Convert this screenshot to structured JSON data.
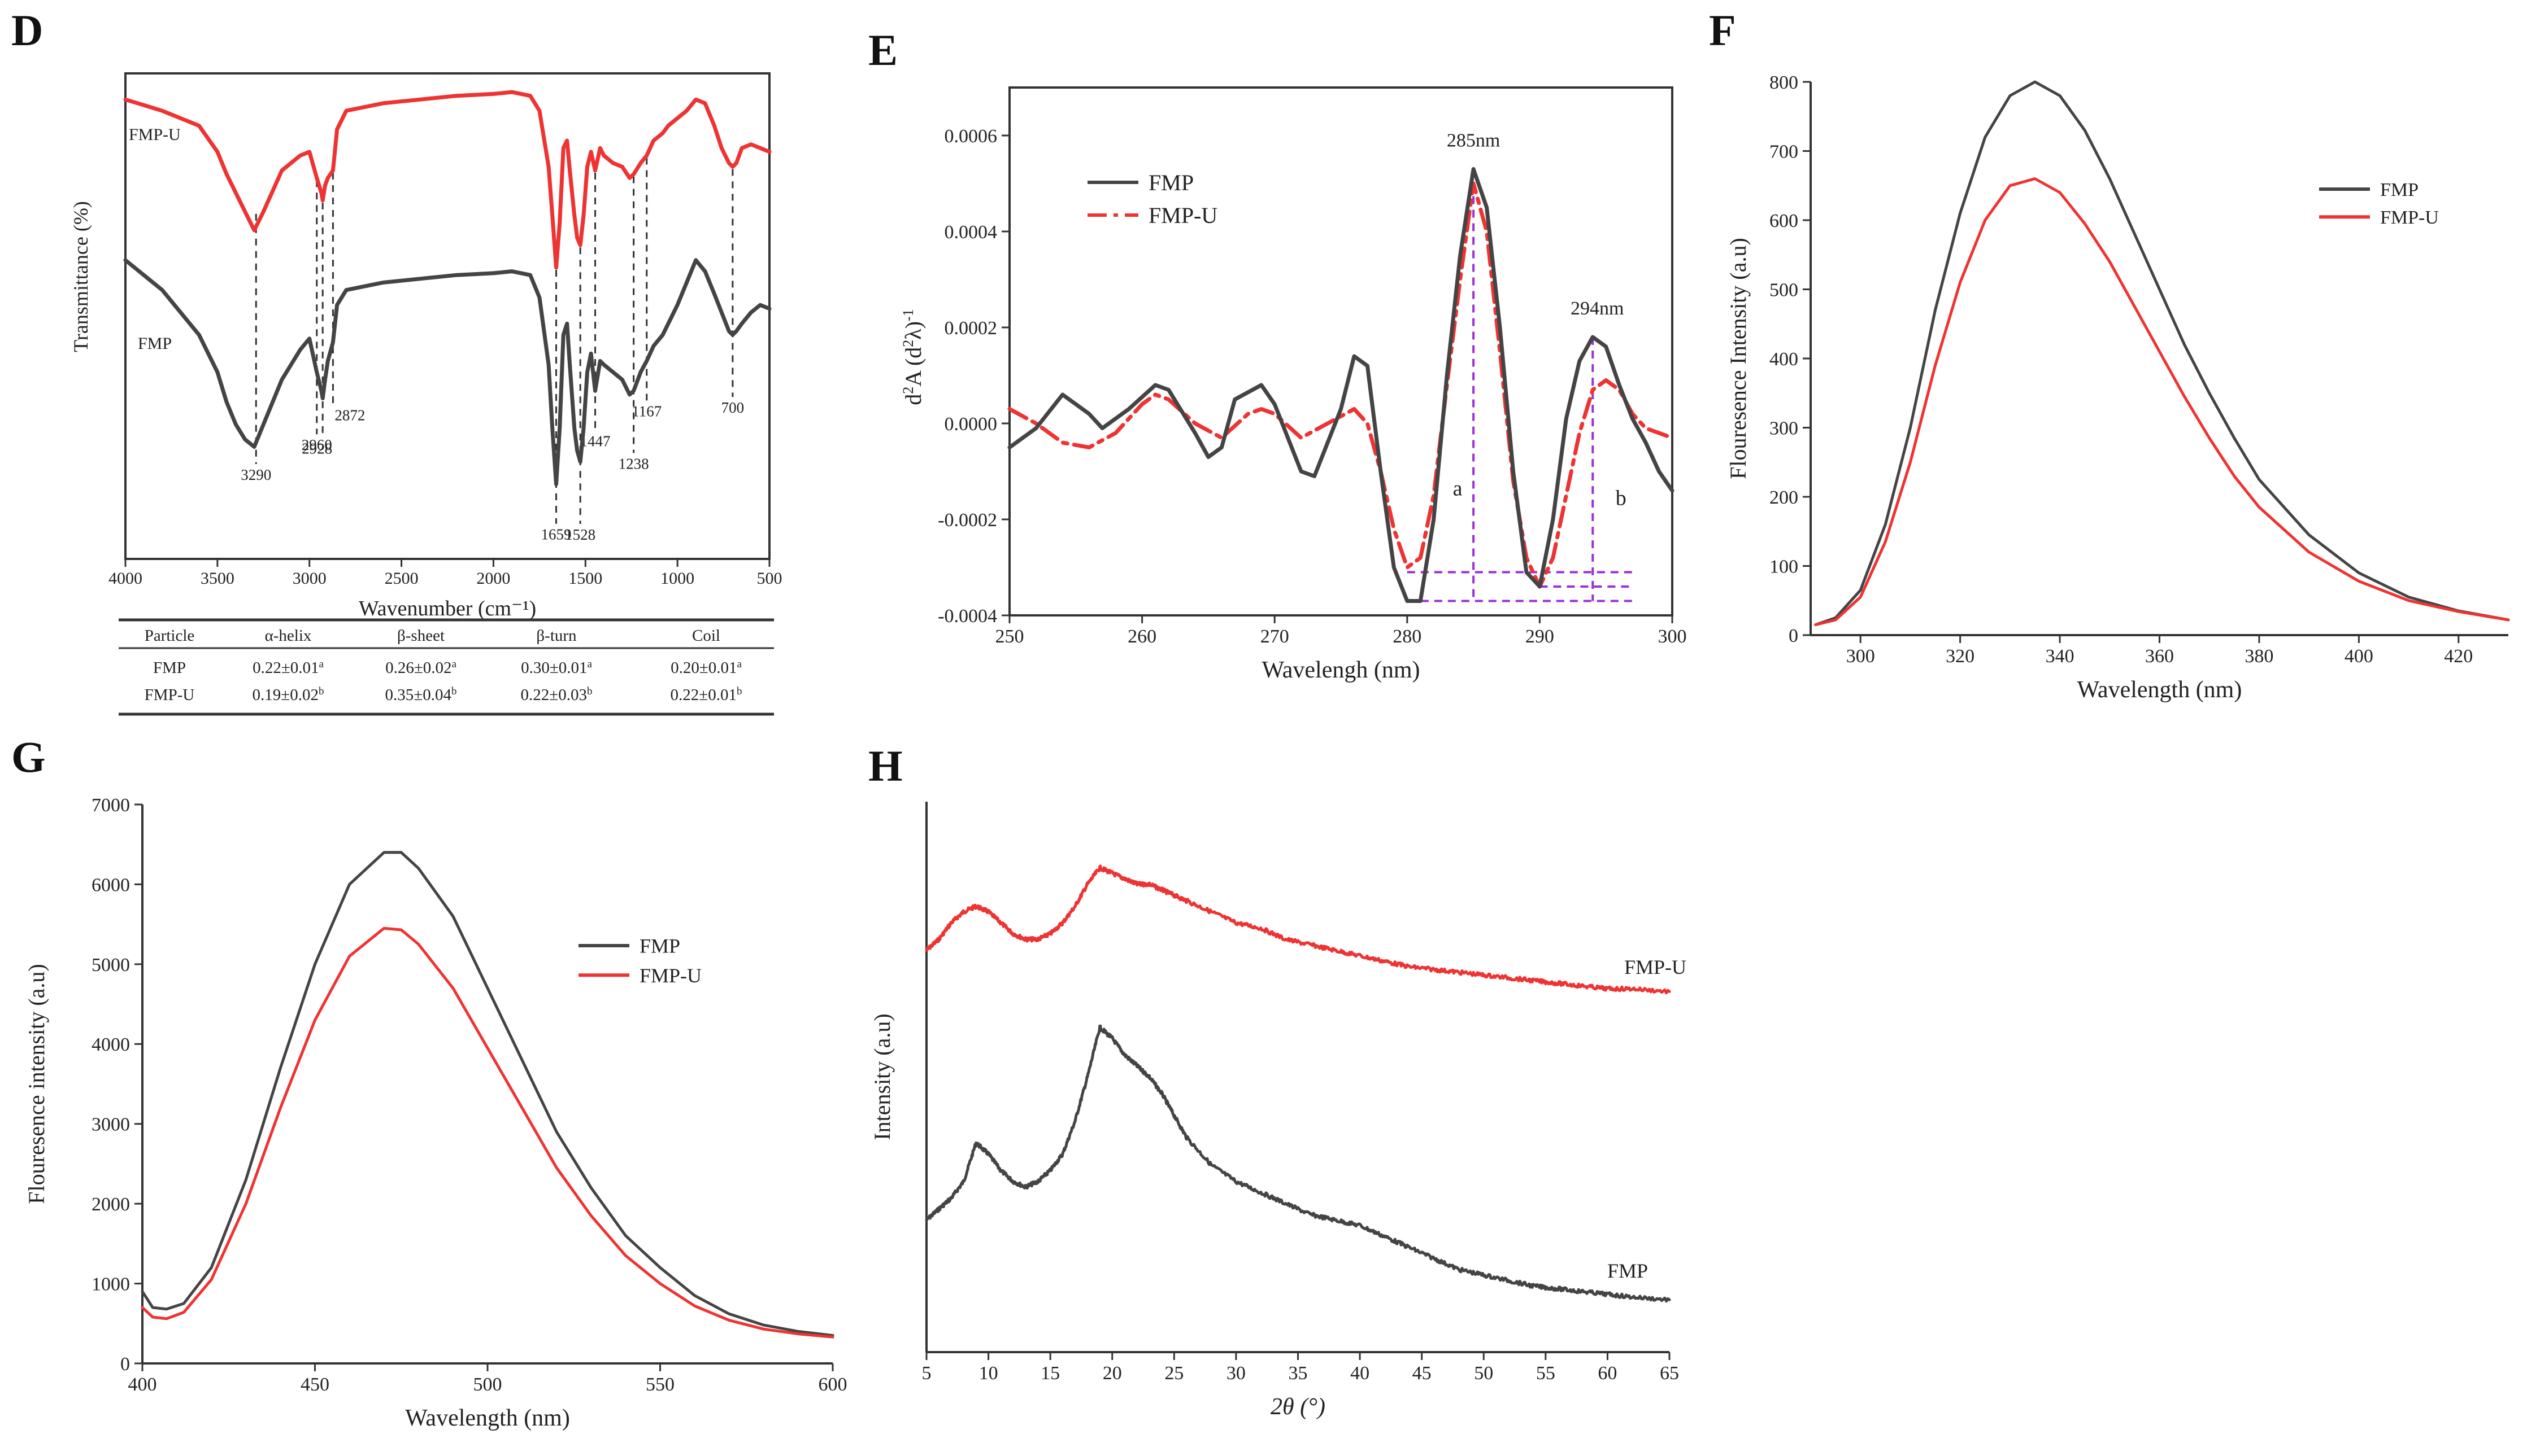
{
  "chart_data": [
    {
      "panel": "D",
      "type": "line",
      "xlabel": "Wavenumber (cm⁻¹)",
      "ylabel": "Transmittance (%)",
      "xlim": [
        4000,
        500
      ],
      "xticks": [
        4000,
        3500,
        3000,
        2500,
        2000,
        1500,
        1000,
        500
      ],
      "series": [
        {
          "name": "FMP-U",
          "color": "#ee3333",
          "x": [
            4000,
            3800,
            3600,
            3500,
            3450,
            3400,
            3350,
            3300,
            3250,
            3150,
            3050,
            3000,
            2960,
            2935,
            2928,
            2915,
            2900,
            2872,
            2850,
            2800,
            2600,
            2400,
            2200,
            2000,
            1900,
            1800,
            1750,
            1700,
            1680,
            1659,
            1640,
            1620,
            1600,
            1585,
            1560,
            1545,
            1528,
            1510,
            1490,
            1470,
            1447,
            1420,
            1400,
            1350,
            1300,
            1260,
            1238,
            1200,
            1167,
            1130,
            1080,
            1050,
            1000,
            950,
            900,
            850,
            800,
            760,
            720,
            700,
            680,
            650,
            600,
            550,
            500
          ],
          "y": [
            0.93,
            0.9,
            0.86,
            0.79,
            0.73,
            0.68,
            0.63,
            0.58,
            0.63,
            0.74,
            0.78,
            0.79,
            0.72,
            0.68,
            0.66,
            0.7,
            0.72,
            0.74,
            0.85,
            0.9,
            0.92,
            0.93,
            0.94,
            0.945,
            0.95,
            0.94,
            0.9,
            0.75,
            0.62,
            0.48,
            0.6,
            0.8,
            0.82,
            0.74,
            0.62,
            0.56,
            0.54,
            0.62,
            0.75,
            0.79,
            0.74,
            0.8,
            0.78,
            0.76,
            0.75,
            0.72,
            0.73,
            0.76,
            0.78,
            0.82,
            0.84,
            0.86,
            0.88,
            0.9,
            0.93,
            0.92,
            0.86,
            0.8,
            0.76,
            0.75,
            0.76,
            0.8,
            0.81,
            0.8,
            0.79
          ]
        },
        {
          "name": "FMP",
          "color": "#444444",
          "x": [
            4000,
            3800,
            3600,
            3500,
            3450,
            3400,
            3350,
            3300,
            3250,
            3150,
            3050,
            3000,
            2960,
            2935,
            2928,
            2915,
            2900,
            2872,
            2850,
            2800,
            2600,
            2400,
            2200,
            2000,
            1900,
            1800,
            1750,
            1700,
            1680,
            1659,
            1640,
            1620,
            1600,
            1585,
            1560,
            1545,
            1528,
            1510,
            1490,
            1470,
            1447,
            1420,
            1400,
            1350,
            1300,
            1260,
            1238,
            1200,
            1167,
            1130,
            1080,
            1050,
            1000,
            950,
            900,
            850,
            800,
            760,
            720,
            700,
            680,
            650,
            600,
            550,
            500
          ],
          "y": [
            0.5,
            0.42,
            0.3,
            0.2,
            0.12,
            0.06,
            0.02,
            0.0,
            0.06,
            0.18,
            0.26,
            0.29,
            0.2,
            0.15,
            0.13,
            0.18,
            0.23,
            0.28,
            0.38,
            0.42,
            0.44,
            0.45,
            0.46,
            0.465,
            0.47,
            0.46,
            0.4,
            0.22,
            0.05,
            -0.1,
            0.05,
            0.3,
            0.33,
            0.22,
            0.05,
            -0.01,
            -0.04,
            0.05,
            0.2,
            0.25,
            0.15,
            0.23,
            0.22,
            0.2,
            0.18,
            0.14,
            0.15,
            0.2,
            0.23,
            0.27,
            0.3,
            0.33,
            0.38,
            0.44,
            0.5,
            0.47,
            0.41,
            0.36,
            0.31,
            0.3,
            0.31,
            0.33,
            0.36,
            0.38,
            0.37
          ]
        }
      ],
      "marker_lines": [
        3290,
        2960,
        2928,
        2872,
        1659,
        1528,
        1447,
        1238,
        1167,
        700
      ],
      "annotations": [
        "3290",
        "2960",
        "2928",
        "2872",
        "1659",
        "1528",
        "1447",
        "1238",
        "1167",
        "700"
      ],
      "legend_labels": [
        "FMP-U",
        "FMP"
      ]
    },
    {
      "panel": "D-table",
      "type": "table",
      "columns": [
        "Particle",
        "α-helix",
        "β-sheet",
        "β-turn",
        "Coil"
      ],
      "rows": [
        {
          "name": "FMP",
          "cells": [
            {
              "v": "0.22±0.01",
              "s": "a"
            },
            {
              "v": "0.26±0.02",
              "s": "a"
            },
            {
              "v": "0.30±0.01",
              "s": "a"
            },
            {
              "v": "0.20±0.01",
              "s": "a"
            }
          ]
        },
        {
          "name": "FMP-U",
          "cells": [
            {
              "v": "0.19±0.02",
              "s": "b"
            },
            {
              "v": "0.35±0.04",
              "s": "b"
            },
            {
              "v": "0.22±0.03",
              "s": "b"
            },
            {
              "v": "0.22±0.01",
              "s": "b"
            }
          ]
        }
      ]
    },
    {
      "panel": "E",
      "type": "line",
      "xlabel": "Wavelengh (nm)",
      "xlim": [
        250,
        300
      ],
      "ylim": [
        -0.0004,
        0.0007
      ],
      "xticks": [
        250,
        260,
        270,
        280,
        290,
        300
      ],
      "yticks": [
        -0.0004,
        -0.0002,
        0.0,
        0.0002,
        0.0004,
        0.0006
      ],
      "ytick_labels": [
        "-0.0004",
        "-0.0002",
        "0.0000",
        "0.0002",
        "0.0004",
        "0.0006"
      ],
      "series": [
        {
          "name": "FMP",
          "color": "#444444",
          "x": [
            250,
            252,
            254,
            256,
            257,
            259,
            261,
            262,
            264,
            265,
            266,
            267,
            269,
            270,
            272,
            273,
            275,
            276,
            277,
            278,
            279,
            280,
            281,
            282,
            283,
            284,
            285,
            286,
            287,
            288,
            289,
            290,
            291,
            292,
            293,
            294,
            295,
            296,
            297,
            298,
            299,
            300
          ],
          "y": [
            -5e-05,
            -1e-05,
            6e-05,
            2e-05,
            -1e-05,
            3e-05,
            8e-05,
            7e-05,
            -2e-05,
            -7e-05,
            -5e-05,
            5e-05,
            8e-05,
            4e-05,
            -0.0001,
            -0.00011,
            3e-05,
            0.00014,
            0.00012,
            -0.0001,
            -0.0003,
            -0.00037,
            -0.00037,
            -0.0002,
            0.0001,
            0.00035,
            0.00053,
            0.00045,
            0.0002,
            -0.0001,
            -0.00031,
            -0.00034,
            -0.0002,
            1e-05,
            0.00013,
            0.00018,
            0.00016,
            8e-05,
            1e-05,
            -4e-05,
            -0.0001,
            -0.00014
          ]
        },
        {
          "name": "FMP-U",
          "color": "#ee3333",
          "dash": "dashdot",
          "x": [
            250,
            252,
            254,
            256,
            258,
            260,
            261,
            262,
            264,
            266,
            268,
            269,
            270,
            272,
            274,
            276,
            277,
            278,
            279,
            280,
            281,
            282,
            283,
            284,
            285,
            286,
            287,
            288,
            289,
            290,
            291,
            292,
            293,
            294,
            295,
            296,
            297,
            298,
            300
          ],
          "y": [
            3e-05,
            0.0,
            -4e-05,
            -5e-05,
            -2e-05,
            4e-05,
            6e-05,
            5e-05,
            0.0,
            -3e-05,
            2e-05,
            3e-05,
            2e-05,
            -3e-05,
            0.0,
            3e-05,
            0.0,
            -0.0001,
            -0.00022,
            -0.0003,
            -0.00028,
            -0.00015,
            8e-05,
            0.0003,
            0.0005,
            0.0004,
            0.00015,
            -0.00012,
            -0.00028,
            -0.00034,
            -0.00028,
            -0.00015,
            -2e-05,
            7e-05,
            9e-05,
            7e-05,
            2e-05,
            -1e-05,
            -3e-05
          ]
        }
      ],
      "annotations": [
        "285nm",
        "294nm",
        "a",
        "b"
      ],
      "peaks": [
        {
          "label": "285nm",
          "x": 285,
          "y": 0.00053,
          "marker": "a"
        },
        {
          "label": "294nm",
          "x": 294,
          "y": 0.00018,
          "marker": "b"
        }
      ],
      "guide_levels": [
        -0.00037,
        -0.00034,
        -0.00031
      ],
      "legend_labels": [
        "FMP",
        "FMP-U"
      ]
    },
    {
      "panel": "F",
      "type": "line",
      "xlabel": "Wavelength (nm)",
      "ylabel": "Flouresence Intensity (a.u)",
      "xlim": [
        290,
        430
      ],
      "ylim": [
        0,
        800
      ],
      "xticks": [
        300,
        320,
        340,
        360,
        380,
        400,
        420
      ],
      "yticks": [
        0,
        100,
        200,
        300,
        400,
        500,
        600,
        700,
        800
      ],
      "series": [
        {
          "name": "FMP",
          "color": "#444444",
          "x": [
            291,
            295,
            300,
            305,
            310,
            315,
            320,
            325,
            330,
            335,
            340,
            345,
            350,
            355,
            360,
            365,
            370,
            375,
            380,
            390,
            400,
            410,
            420,
            430
          ],
          "y": [
            15,
            25,
            65,
            160,
            300,
            470,
            610,
            720,
            780,
            800,
            780,
            730,
            660,
            580,
            500,
            420,
            350,
            285,
            225,
            145,
            90,
            55,
            35,
            22
          ]
        },
        {
          "name": "FMP-U",
          "color": "#ee3333",
          "x": [
            291,
            295,
            300,
            305,
            310,
            315,
            320,
            325,
            330,
            335,
            340,
            345,
            350,
            355,
            360,
            365,
            370,
            375,
            380,
            390,
            400,
            410,
            420,
            430
          ],
          "y": [
            15,
            22,
            55,
            135,
            250,
            390,
            510,
            600,
            650,
            660,
            640,
            595,
            540,
            475,
            410,
            345,
            285,
            230,
            185,
            120,
            78,
            50,
            34,
            22
          ]
        }
      ],
      "legend_labels": [
        "FMP",
        "FMP-U"
      ]
    },
    {
      "panel": "G",
      "type": "line",
      "xlabel": "Wavelength (nm)",
      "ylabel": "Flouresence intensity (a.u)",
      "xlim": [
        400,
        600
      ],
      "ylim": [
        0,
        7000
      ],
      "xticks": [
        400,
        450,
        500,
        550,
        600
      ],
      "yticks": [
        0,
        1000,
        2000,
        3000,
        4000,
        5000,
        6000,
        7000
      ],
      "series": [
        {
          "name": "FMP",
          "color": "#444444",
          "x": [
            400,
            403,
            407,
            412,
            420,
            430,
            440,
            450,
            460,
            470,
            475,
            480,
            490,
            500,
            510,
            520,
            530,
            540,
            550,
            560,
            570,
            580,
            590,
            600
          ],
          "y": [
            900,
            700,
            680,
            750,
            1200,
            2300,
            3700,
            5000,
            6000,
            6400,
            6400,
            6200,
            5600,
            4700,
            3800,
            2900,
            2200,
            1600,
            1200,
            850,
            620,
            480,
            400,
            350
          ]
        },
        {
          "name": "FMP-U",
          "color": "#ee3333",
          "x": [
            400,
            403,
            407,
            412,
            420,
            430,
            440,
            450,
            460,
            470,
            475,
            480,
            490,
            500,
            510,
            520,
            530,
            540,
            550,
            560,
            570,
            580,
            590,
            600
          ],
          "y": [
            700,
            580,
            560,
            640,
            1050,
            2000,
            3200,
            4300,
            5100,
            5450,
            5430,
            5250,
            4700,
            3950,
            3200,
            2450,
            1850,
            1350,
            1000,
            720,
            540,
            430,
            370,
            330
          ]
        }
      ],
      "legend_labels": [
        "FMP",
        "FMP-U"
      ]
    },
    {
      "panel": "H",
      "type": "line",
      "xlabel": "2θ (°)",
      "ylabel": "Intensity (a.u)",
      "xlim": [
        5,
        65
      ],
      "ylim": [
        0,
        1
      ],
      "xticks": [
        5,
        10,
        15,
        20,
        25,
        30,
        35,
        40,
        45,
        50,
        55,
        60,
        65
      ],
      "series": [
        {
          "name": "FMP-U",
          "color": "#ee3333",
          "x": [
            5,
            6,
            7,
            8,
            9,
            10,
            11,
            12,
            13,
            14,
            15,
            16,
            17,
            18,
            19,
            20,
            21,
            22,
            23,
            24,
            25,
            26,
            28,
            30,
            32,
            34,
            36,
            38,
            40,
            42,
            44,
            46,
            48,
            50,
            52,
            54,
            56,
            58,
            60,
            62,
            65
          ],
          "y": [
            0.73,
            0.75,
            0.78,
            0.8,
            0.81,
            0.8,
            0.78,
            0.76,
            0.75,
            0.75,
            0.76,
            0.78,
            0.81,
            0.85,
            0.88,
            0.87,
            0.86,
            0.85,
            0.85,
            0.84,
            0.83,
            0.82,
            0.8,
            0.78,
            0.77,
            0.75,
            0.74,
            0.73,
            0.72,
            0.71,
            0.7,
            0.695,
            0.69,
            0.685,
            0.68,
            0.675,
            0.67,
            0.665,
            0.66,
            0.66,
            0.655
          ]
        },
        {
          "name": "FMP",
          "color": "#444444",
          "x": [
            5,
            6,
            7,
            8,
            9,
            10,
            11,
            12,
            13,
            14,
            15,
            16,
            17,
            18,
            19,
            20,
            21,
            22,
            23,
            24,
            25,
            26,
            28,
            30,
            32,
            34,
            36,
            38,
            40,
            42,
            44,
            46,
            48,
            50,
            52,
            54,
            56,
            58,
            60,
            62,
            65
          ],
          "y": [
            0.24,
            0.26,
            0.28,
            0.31,
            0.38,
            0.36,
            0.33,
            0.31,
            0.3,
            0.31,
            0.33,
            0.36,
            0.42,
            0.5,
            0.59,
            0.57,
            0.54,
            0.52,
            0.5,
            0.47,
            0.43,
            0.39,
            0.34,
            0.31,
            0.29,
            0.27,
            0.25,
            0.24,
            0.23,
            0.21,
            0.19,
            0.17,
            0.15,
            0.14,
            0.13,
            0.12,
            0.115,
            0.11,
            0.105,
            0.1,
            0.095
          ]
        }
      ],
      "annotations": [
        "FMP-U",
        "FMP"
      ]
    }
  ],
  "panel_letters": [
    "D",
    "E",
    "F",
    "G",
    "H"
  ]
}
